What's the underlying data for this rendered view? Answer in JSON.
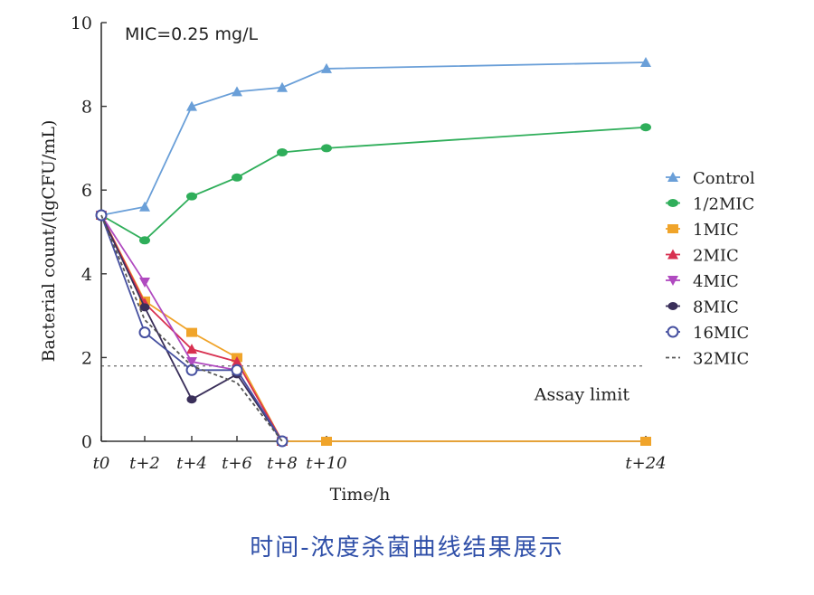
{
  "chart_data": {
    "type": "line",
    "annotation_top": "MIC=0.25 mg/L",
    "xlabel": "Time/h",
    "ylabel": "Bacterial count/(lgCFU/mL)",
    "ylim": [
      0,
      10
    ],
    "yticks": [
      0,
      2,
      4,
      6,
      8,
      10
    ],
    "x_ticks": [
      {
        "value": 0,
        "label": "t0"
      },
      {
        "value": 2,
        "label": "t+2"
      },
      {
        "value": 4,
        "label": "t+4"
      },
      {
        "value": 6,
        "label": "t+6"
      },
      {
        "value": 8,
        "label": "t+8"
      },
      {
        "value": 10,
        "label": "t+10"
      },
      {
        "value": 24,
        "label": "t+24"
      }
    ],
    "assay_limit": {
      "value": 1.8,
      "label": "Assay limit"
    },
    "legend_position": "right",
    "series": [
      {
        "name": "Control",
        "color": "#6a9fd8",
        "marker": "triangle",
        "x": [
          0,
          2,
          4,
          6,
          8,
          10,
          24
        ],
        "y": [
          5.4,
          5.6,
          8.0,
          8.35,
          8.45,
          8.9,
          9.05
        ]
      },
      {
        "name": "1/2MIC",
        "color": "#2fae5a",
        "marker": "circle",
        "x": [
          0,
          2,
          4,
          6,
          8,
          10,
          24
        ],
        "y": [
          5.4,
          4.8,
          5.85,
          6.3,
          6.9,
          7.0,
          7.5
        ]
      },
      {
        "name": "1MIC",
        "color": "#f0a42a",
        "marker": "square",
        "x": [
          0,
          2,
          4,
          6,
          8,
          10,
          24
        ],
        "y": [
          5.4,
          3.35,
          2.6,
          2.0,
          0,
          0,
          0
        ]
      },
      {
        "name": "2MIC",
        "color": "#d83050",
        "marker": "triangle",
        "x": [
          0,
          2,
          4,
          6,
          8
        ],
        "y": [
          5.4,
          3.3,
          2.2,
          1.9,
          0
        ]
      },
      {
        "name": "4MIC",
        "color": "#b04ac0",
        "marker": "triangle-down",
        "x": [
          0,
          2,
          4,
          6,
          8
        ],
        "y": [
          5.4,
          3.8,
          1.9,
          1.7,
          0
        ]
      },
      {
        "name": "8MIC",
        "color": "#3a2f5a",
        "marker": "diamond",
        "x": [
          0,
          2,
          4,
          6,
          8
        ],
        "y": [
          5.4,
          3.2,
          1.0,
          1.6,
          0
        ]
      },
      {
        "name": "16MIC",
        "color": "#4650a0",
        "marker": "circle-open",
        "x": [
          0,
          2,
          4,
          6,
          8
        ],
        "y": [
          5.4,
          2.6,
          1.7,
          1.7,
          0
        ]
      },
      {
        "name": "32MIC",
        "color": "#555555",
        "marker": "none",
        "x": [
          0,
          2,
          4,
          6,
          8
        ],
        "y": [
          5.4,
          2.9,
          1.8,
          1.4,
          0
        ]
      }
    ]
  },
  "caption": "时间-浓度杀菌曲线结果展示"
}
